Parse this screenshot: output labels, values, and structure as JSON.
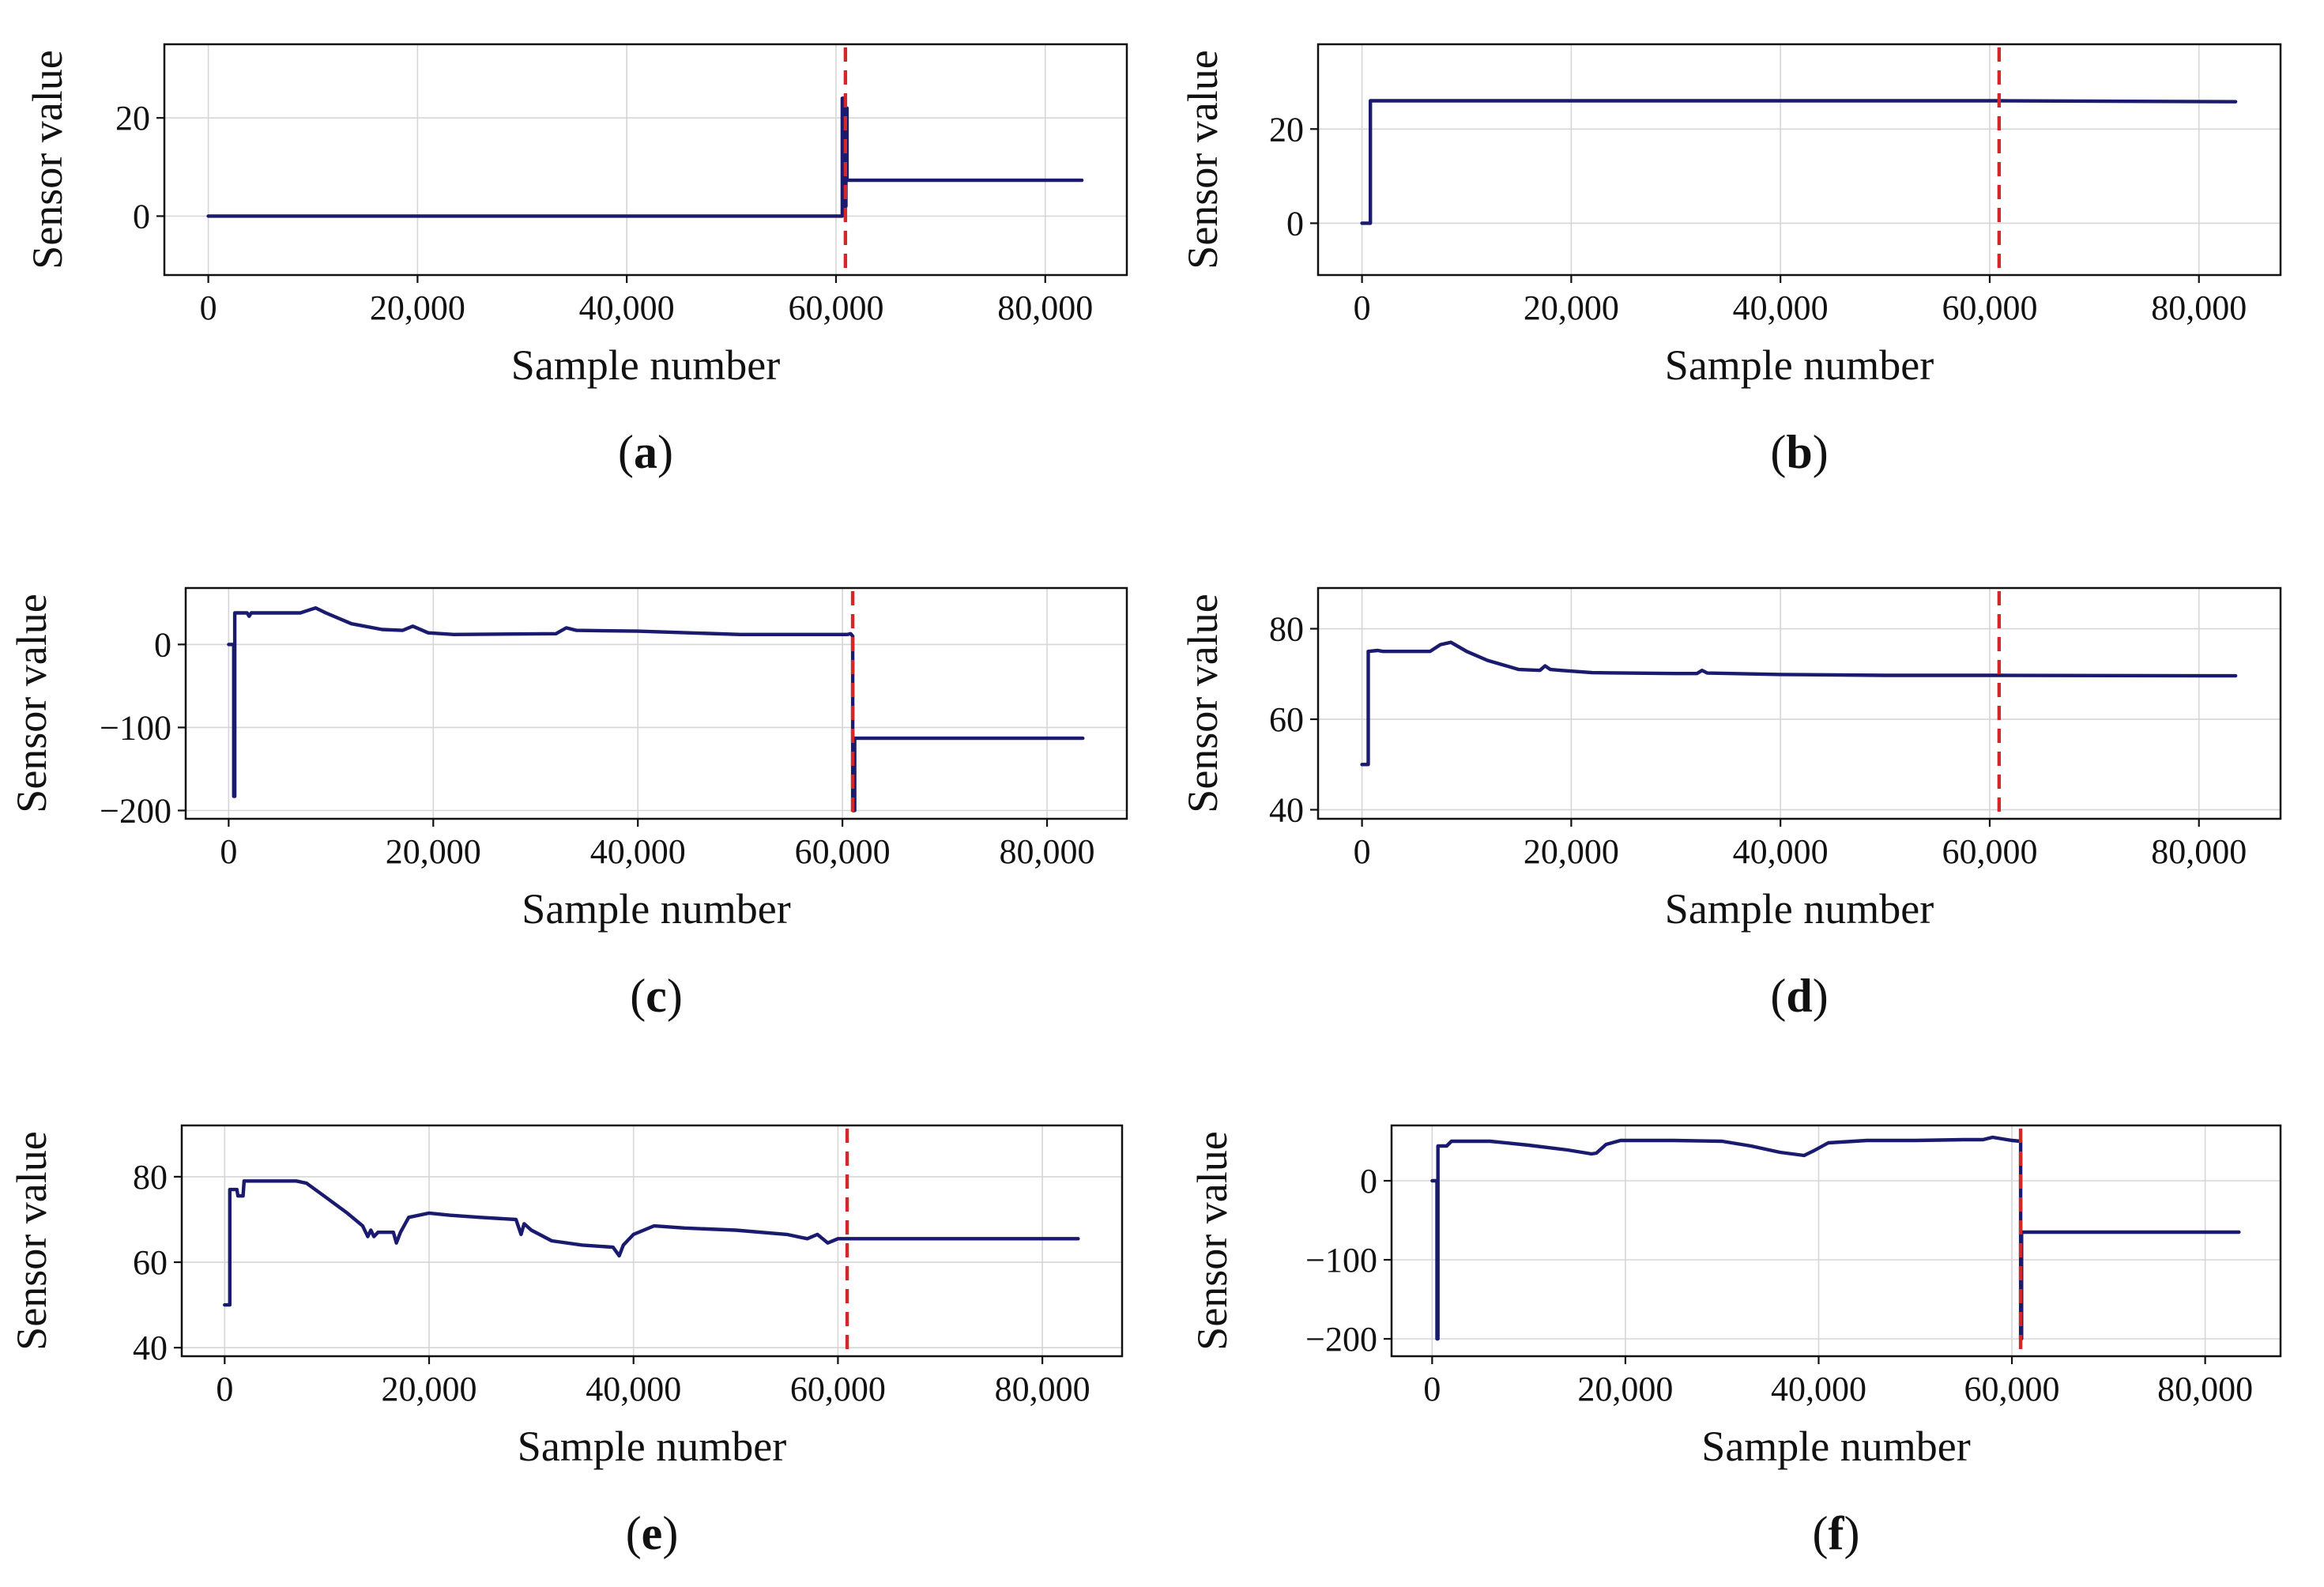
{
  "colors": {
    "series": "#1a1a6e",
    "marker": "#d62728",
    "grid": "#d6d6d6",
    "frame": "#111111"
  },
  "chart_data": [
    {
      "type": "line",
      "caption": "a",
      "xlabel": "Sample number",
      "ylabel": "Sensor value",
      "xlim": [
        -4200,
        87800
      ],
      "ylim": [
        -12,
        35
      ],
      "xticks": [
        0,
        20000,
        40000,
        60000,
        80000
      ],
      "xtick_labels": [
        "0",
        "20,000",
        "40,000",
        "60,000",
        "80,000"
      ],
      "yticks": [
        0,
        20
      ],
      "ytick_labels": [
        "0",
        "20"
      ],
      "grid": true,
      "vline_x": 60900,
      "series": [
        {
          "x": [
            0,
            60600,
            60600,
            60850,
            60850,
            60950,
            60950,
            61050,
            61050,
            83500
          ],
          "y": [
            0,
            0,
            24,
            24,
            2,
            2,
            22,
            22,
            7.3,
            7.3
          ]
        }
      ]
    },
    {
      "type": "line",
      "caption": "b",
      "xlabel": "Sample number",
      "ylabel": "Sensor value",
      "xlim": [
        -4200,
        87800
      ],
      "ylim": [
        -11,
        38
      ],
      "xticks": [
        0,
        20000,
        40000,
        60000,
        80000
      ],
      "xtick_labels": [
        "0",
        "20,000",
        "40,000",
        "60,000",
        "80,000"
      ],
      "yticks": [
        0,
        20
      ],
      "ytick_labels": [
        "0",
        "20"
      ],
      "grid": true,
      "vline_x": 60900,
      "series": [
        {
          "x": [
            0,
            800,
            800,
            60900,
            83500
          ],
          "y": [
            0,
            0,
            26,
            26,
            25.8
          ]
        }
      ]
    },
    {
      "type": "line",
      "caption": "c",
      "xlabel": "Sample number",
      "ylabel": "Sensor value",
      "xlim": [
        -4200,
        87800
      ],
      "ylim": [
        -210,
        68
      ],
      "xticks": [
        0,
        20000,
        40000,
        60000,
        80000
      ],
      "xtick_labels": [
        "0",
        "20,000",
        "40,000",
        "60,000",
        "80,000"
      ],
      "yticks": [
        -200,
        -100,
        0
      ],
      "ytick_labels": [
        "−200",
        "−100",
        "0"
      ],
      "grid": true,
      "vline_x": 61000,
      "series": [
        {
          "x": [
            0,
            500,
            500,
            600,
            600,
            1800,
            2000,
            2200,
            7000,
            8500,
            9500,
            12000,
            15000,
            17000,
            18000,
            19500,
            22000,
            32000,
            33000,
            34000,
            40000,
            50000,
            60500,
            60800,
            61000,
            61000,
            61200,
            61200,
            83500
          ],
          "y": [
            0,
            0,
            -183,
            -183,
            38,
            38,
            34,
            38,
            38,
            44,
            38,
            25,
            18,
            17,
            22,
            14,
            12,
            13,
            20,
            17,
            16,
            12,
            12,
            13,
            10,
            -200,
            -200,
            -113,
            -113
          ]
        }
      ]
    },
    {
      "type": "line",
      "caption": "d",
      "xlabel": "Sample number",
      "ylabel": "Sensor value",
      "xlim": [
        -4200,
        87800
      ],
      "ylim": [
        38,
        89
      ],
      "xticks": [
        0,
        20000,
        40000,
        60000,
        80000
      ],
      "xtick_labels": [
        "0",
        "20,000",
        "40,000",
        "60,000",
        "80,000"
      ],
      "yticks": [
        40,
        60,
        80
      ],
      "ytick_labels": [
        "40",
        "60",
        "80"
      ],
      "grid": true,
      "vline_x": 60900,
      "series": [
        {
          "x": [
            0,
            600,
            600,
            1500,
            2000,
            6500,
            7500,
            8500,
            10000,
            12000,
            15000,
            17000,
            17500,
            18000,
            19000,
            22000,
            30000,
            32000,
            32500,
            33000,
            40000,
            50000,
            60900,
            83500
          ],
          "y": [
            50,
            50,
            75,
            75.2,
            75,
            75,
            76.5,
            77,
            75,
            73,
            71,
            70.8,
            71.8,
            71,
            70.8,
            70.3,
            70.1,
            70.1,
            70.8,
            70.2,
            69.9,
            69.7,
            69.7,
            69.6
          ]
        }
      ]
    },
    {
      "type": "line",
      "caption": "e",
      "xlabel": "Sample number",
      "ylabel": "Sensor value",
      "xlim": [
        -4200,
        87800
      ],
      "ylim": [
        38,
        92
      ],
      "xticks": [
        0,
        20000,
        40000,
        60000,
        80000
      ],
      "xtick_labels": [
        "0",
        "20,000",
        "40,000",
        "60,000",
        "80,000"
      ],
      "yticks": [
        40,
        60,
        80
      ],
      "ytick_labels": [
        "40",
        "60",
        "80"
      ],
      "grid": true,
      "vline_x": 60900,
      "series": [
        {
          "x": [
            0,
            500,
            500,
            1200,
            1300,
            1800,
            1900,
            7000,
            8000,
            10000,
            12000,
            13500,
            14000,
            14300,
            14600,
            15000,
            16500,
            16800,
            17200,
            18000,
            20000,
            22000,
            25000,
            28500,
            29000,
            29300,
            30000,
            32000,
            35000,
            38000,
            38600,
            39000,
            40000,
            42000,
            45000,
            50000,
            55000,
            57000,
            58000,
            59000,
            60000,
            60900,
            83500
          ],
          "y": [
            50,
            50,
            77,
            77,
            75.5,
            75.5,
            79,
            79,
            78.5,
            75,
            71.5,
            68.5,
            66,
            67.5,
            66,
            67,
            67,
            64.5,
            67,
            70.5,
            71.5,
            71,
            70.5,
            70,
            66.5,
            69,
            67.5,
            65,
            64,
            63.5,
            61.5,
            64,
            66.5,
            68.5,
            68,
            67.5,
            66.5,
            65.5,
            66.5,
            64.5,
            65.5,
            65.5,
            65.5
          ]
        }
      ]
    },
    {
      "type": "line",
      "caption": "f",
      "xlabel": "Sample number",
      "ylabel": "Sensor value",
      "xlim": [
        -4200,
        87800
      ],
      "ylim": [
        -222,
        70
      ],
      "xticks": [
        0,
        20000,
        40000,
        60000,
        80000
      ],
      "xtick_labels": [
        "0",
        "20,000",
        "40,000",
        "60,000",
        "80,000"
      ],
      "yticks": [
        -200,
        -100,
        0
      ],
      "ytick_labels": [
        "−200",
        "−100",
        "0"
      ],
      "grid": true,
      "vline_x": 60900,
      "series": [
        {
          "x": [
            0,
            500,
            500,
            600,
            600,
            1500,
            2000,
            6000,
            10000,
            14000,
            16500,
            17000,
            18000,
            19500,
            25000,
            30000,
            33000,
            36000,
            38500,
            39500,
            41000,
            45000,
            50000,
            55000,
            57000,
            58000,
            59000,
            60000,
            60900,
            60900,
            61000,
            61000,
            83500
          ],
          "y": [
            0,
            0,
            -200,
            -200,
            44,
            44,
            50,
            50,
            45,
            39,
            34,
            35,
            46,
            51,
            51,
            50,
            44,
            36,
            32,
            38,
            48,
            51,
            51,
            52,
            52,
            55,
            53,
            51,
            50,
            -200,
            -200,
            -65,
            -65
          ]
        }
      ]
    }
  ]
}
